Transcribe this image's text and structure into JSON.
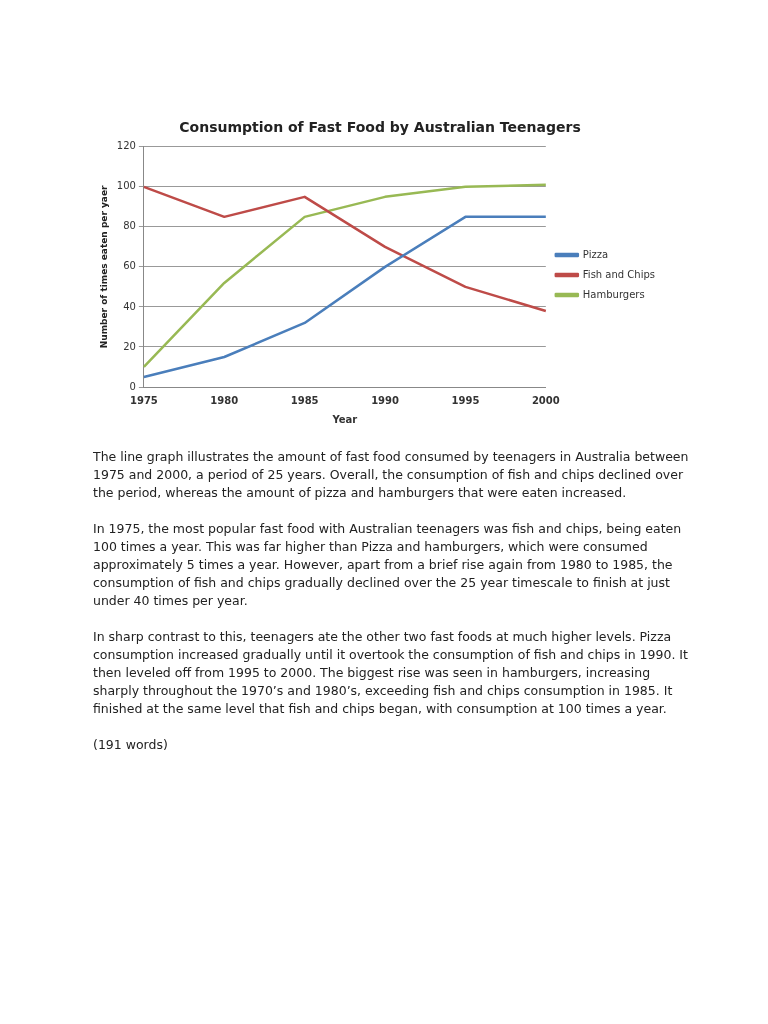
{
  "chart_data": {
    "type": "line",
    "title": "Consumption of Fast Food by Australian Teenagers",
    "xlabel": "Year",
    "ylabel": "Number of times eaten per yaer",
    "categories": [
      "1975",
      "1980",
      "1985",
      "1990",
      "1995",
      "2000"
    ],
    "series": [
      {
        "name": "Pizza",
        "color": "#4a7ebb",
        "values": [
          5,
          15,
          32,
          60,
          85,
          85
        ]
      },
      {
        "name": "Fish and Chips",
        "color": "#be4b48",
        "values": [
          100,
          85,
          95,
          70,
          50,
          38
        ]
      },
      {
        "name": "Hamburgers",
        "color": "#98b954",
        "values": [
          10,
          52,
          85,
          95,
          100,
          101
        ]
      }
    ],
    "ylim": [
      0,
      120
    ],
    "yticks": [
      0,
      20,
      40,
      60,
      80,
      100,
      120
    ],
    "grid": "y",
    "legend": "right",
    "marker": "none",
    "line_style": "solid",
    "annotations": [
      "The line graph illustrates the amount of fast food consumed by teenagers in Australia between 1975 and 2000, a period of 25 years. Overall, the consumption of fish and chips declined over the period, whereas the amount of pizza and hamburgers that were eaten increased.",
      "In 1975, the most popular fast food with Australian teenagers was fish and chips, being eaten 100 times a year. This was far higher than Pizza and hamburgers, which were consumed approximately 5 times a year. However, apart from a brief rise again from 1980 to 1985, the consumption of fish and chips gradually declined over the 25 year timescale to finish at just under 40 times per year.",
      "In sharp contrast to this, teenagers ate the other two fast foods at much higher levels. Pizza consumption increased gradually until it overtook the consumption of fish and chips in 1990. It then leveled off from 1995 to 2000. The biggest rise was seen in hamburgers, increasing sharply throughout the 1970’s and 1980’s, exceeding fish and chips consumption in 1985. It finished at the same level that fish and chips began, with consumption at 100 times a year.",
      "(191 words)"
    ]
  }
}
